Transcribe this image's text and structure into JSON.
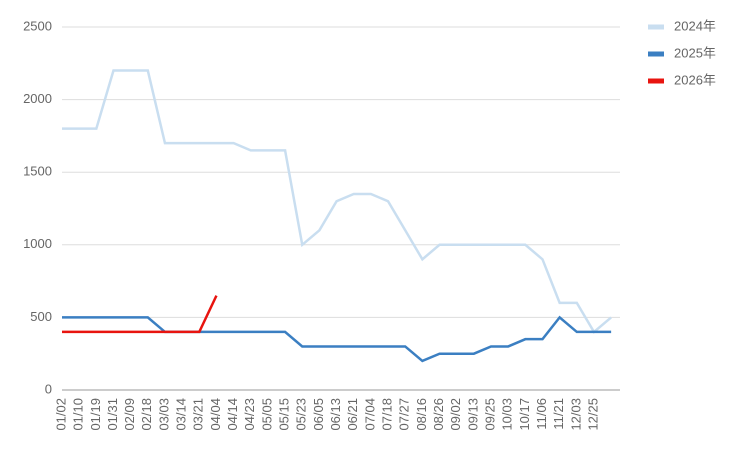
{
  "chart_data": {
    "type": "line",
    "categories": [
      "01/02",
      "01/10",
      "01/19",
      "01/31",
      "02/09",
      "02/18",
      "03/03",
      "03/14",
      "03/21",
      "04/04",
      "04/14",
      "04/23",
      "05/05",
      "05/15",
      "05/23",
      "06/05",
      "06/13",
      "06/21",
      "07/04",
      "07/18",
      "07/27",
      "08/16",
      "08/26",
      "09/02",
      "09/13",
      "09/25",
      "10/03",
      "10/17",
      "11/06",
      "11/21",
      "12/03",
      "12/25",
      null
    ],
    "series": [
      {
        "name": "2024年",
        "color": "#c9def0",
        "values": [
          1800,
          1800,
          1800,
          2200,
          2200,
          2200,
          1700,
          1700,
          1700,
          1700,
          1700,
          1650,
          1650,
          1650,
          1000,
          1100,
          1300,
          1350,
          1350,
          1300,
          1100,
          900,
          1000,
          1000,
          1000,
          1000,
          1000,
          1000,
          900,
          600,
          600,
          400,
          500
        ]
      },
      {
        "name": "2025年",
        "color": "#3b7fc2",
        "values": [
          500,
          500,
          500,
          500,
          500,
          500,
          400,
          400,
          400,
          400,
          400,
          400,
          400,
          400,
          300,
          300,
          300,
          300,
          300,
          300,
          300,
          200,
          250,
          250,
          250,
          300,
          300,
          350,
          350,
          500,
          400,
          400,
          400
        ]
      },
      {
        "name": "2026年",
        "color": "#e8140f",
        "values": [
          400,
          400,
          400,
          400,
          400,
          400,
          400,
          400,
          400,
          650,
          null,
          null,
          null,
          null,
          null,
          null,
          null,
          null,
          null,
          null,
          null,
          null,
          null,
          null,
          null,
          null,
          null,
          null,
          null,
          null,
          null,
          null,
          null
        ]
      }
    ],
    "ylim": [
      0,
      2500
    ],
    "yticks": [
      0,
      500,
      1000,
      1500,
      2000,
      2500
    ],
    "grid": true,
    "legend": "top-right"
  }
}
